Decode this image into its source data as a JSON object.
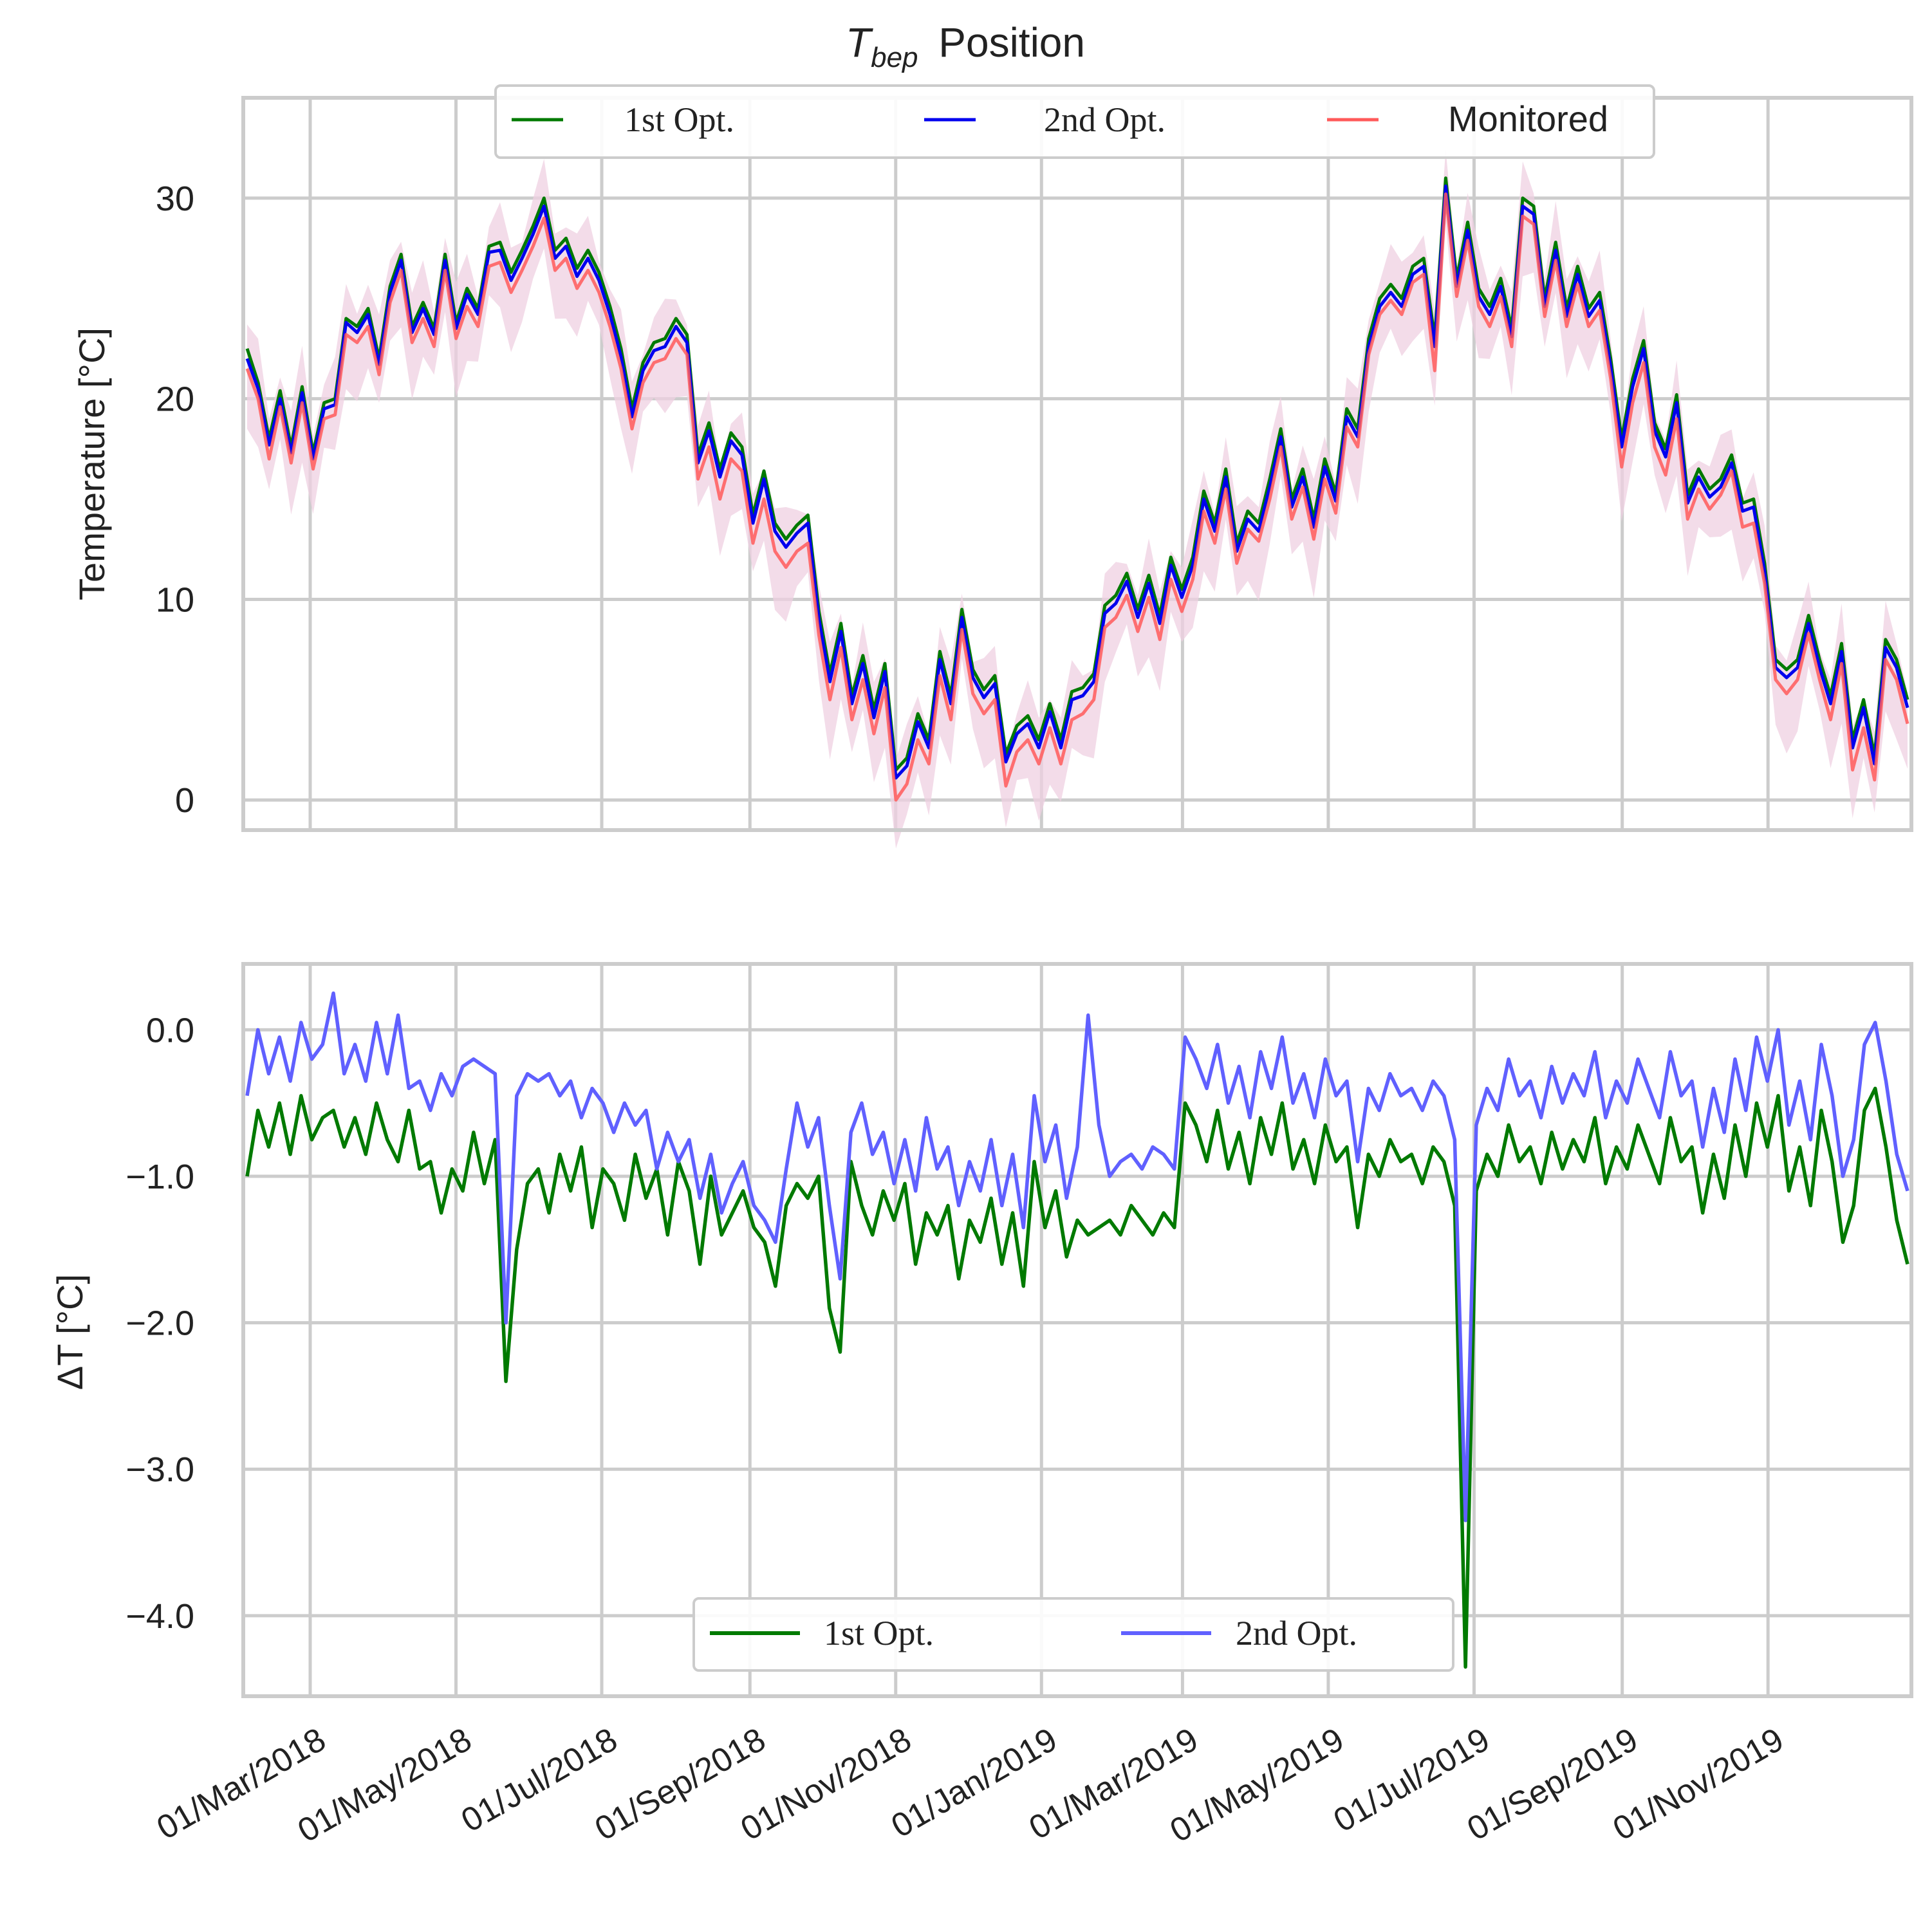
{
  "chart_data": [
    {
      "type": "line",
      "title_main": "T",
      "title_sub": "bep",
      "title_rest": " Position",
      "ylabel": "Temperature [°C]",
      "xlabel": "",
      "ylim": [
        -1.5,
        35
      ],
      "yticks": [
        0,
        10,
        20,
        30
      ],
      "yticklabels": [
        "0",
        "10",
        "20",
        "30"
      ],
      "grid": true,
      "legend_position": "top-center",
      "colors": {
        "opt1": "#007a00",
        "opt2": "#0000ee",
        "monitored": "#ff5a5a",
        "band": "#efd0e2"
      },
      "series": [
        {
          "name": "1st Opt.",
          "values": [
            22.5,
            20.8,
            18,
            20.4,
            17.6,
            20.6,
            17.3,
            19.8,
            20,
            24,
            23.6,
            24.5,
            22,
            25.6,
            27.2,
            23.6,
            24.8,
            23.5,
            27.2,
            23.8,
            25.5,
            24.5,
            27.6,
            27.8,
            26.3,
            27.4,
            28.6,
            30,
            27.4,
            28,
            26.5,
            27.4,
            26.3,
            24.6,
            22.5,
            19.5,
            21.8,
            22.8,
            23,
            24,
            23.2,
            17.2,
            18.8,
            16.5,
            18.3,
            17.6,
            14.2,
            16.4,
            13.8,
            13,
            13.7,
            14.2,
            9.4,
            6.3,
            8.8,
            5.2,
            7.2,
            4.5,
            6.8,
            1.5,
            2.1,
            4.3,
            3,
            7.4,
            5.2,
            9.5,
            6.5,
            5.5,
            6.2,
            2.3,
            3.7,
            4.2,
            3,
            4.8,
            3,
            5.4,
            5.6,
            6.3,
            9.7,
            10.2,
            11.3,
            9.5,
            11.2,
            9.2,
            12.1,
            10.5,
            12.1,
            15.4,
            13.8,
            16.5,
            12.8,
            14.4,
            13.8,
            16,
            18.5,
            15,
            16.5,
            14,
            17,
            15.3,
            19.5,
            18.5,
            23,
            25,
            25.7,
            25,
            26.6,
            27,
            23,
            31,
            26,
            28.8,
            25.5,
            24.6,
            26,
            23.5,
            30,
            29.6,
            25,
            27.8,
            24.5,
            26.6,
            24.5,
            25.3,
            22,
            18,
            21,
            22.9,
            18.8,
            17.5,
            20.2,
            15.2,
            16.5,
            15.5,
            16,
            17.2,
            14.8,
            15,
            11.8,
            7,
            6.5,
            7,
            9.2,
            7,
            5.2,
            7.8,
            3,
            5,
            2.2,
            8,
            7,
            5
          ]
        },
        {
          "name": "2nd Opt.",
          "values": [
            22,
            20.5,
            17.7,
            20,
            17.3,
            20.3,
            17,
            19.5,
            19.7,
            23.8,
            23.3,
            24.2,
            21.7,
            25.3,
            26.9,
            23.3,
            24.5,
            23.2,
            26.9,
            23.5,
            25.2,
            24.2,
            27.3,
            27.4,
            25.9,
            27,
            28.2,
            29.6,
            27,
            27.6,
            26.1,
            27,
            25.9,
            24.2,
            22.1,
            19.1,
            21.4,
            22.4,
            22.6,
            23.6,
            22.8,
            16.8,
            18.4,
            16.1,
            17.9,
            17.2,
            13.8,
            16,
            13.4,
            12.6,
            13.3,
            13.8,
            9,
            5.9,
            8.4,
            4.8,
            6.8,
            4.1,
            6.4,
            1.1,
            1.7,
            3.9,
            2.6,
            7,
            4.8,
            9.1,
            6.1,
            5.1,
            5.8,
            1.9,
            3.3,
            3.8,
            2.6,
            4.4,
            2.6,
            5,
            5.2,
            5.9,
            9.3,
            9.8,
            10.9,
            9.1,
            10.8,
            8.8,
            11.7,
            10.1,
            11.7,
            15,
            13.4,
            16.1,
            12.4,
            14,
            13.4,
            15.6,
            18.1,
            14.6,
            16.1,
            13.6,
            16.6,
            14.9,
            19.1,
            18.1,
            22.6,
            24.6,
            25.3,
            24.6,
            26.2,
            26.6,
            22.6,
            30.6,
            25.6,
            28.4,
            25.1,
            24.2,
            25.6,
            23.1,
            29.6,
            29.2,
            24.6,
            27.4,
            24.1,
            26.2,
            24.1,
            24.9,
            21.6,
            17.6,
            20.6,
            22.5,
            18.4,
            17.1,
            19.8,
            14.8,
            16.1,
            15.1,
            15.6,
            16.8,
            14.4,
            14.6,
            11.4,
            6.6,
            6.1,
            6.6,
            8.8,
            6.6,
            4.8,
            7.4,
            2.6,
            4.6,
            1.8,
            7.6,
            6.6,
            4.6
          ]
        },
        {
          "name": "Monitored",
          "values": [
            21.5,
            20,
            17,
            19.6,
            16.8,
            19.8,
            16.5,
            19,
            19.2,
            23.2,
            22.8,
            23.6,
            21.2,
            24.8,
            26.4,
            22.8,
            24,
            22.6,
            26.4,
            23,
            24.6,
            23.6,
            26.6,
            26.8,
            25.3,
            26.4,
            27.6,
            29,
            26.4,
            27,
            25.5,
            26.4,
            25.3,
            23.6,
            21.5,
            18.5,
            20.8,
            21.8,
            22,
            23,
            22.2,
            16,
            17.6,
            15,
            17,
            16.4,
            12.8,
            15,
            12.4,
            11.6,
            12.4,
            12.8,
            8.2,
            5,
            7.6,
            4,
            6,
            3.3,
            5.6,
            0,
            0.8,
            3,
            1.8,
            6.2,
            4,
            8.5,
            5.3,
            4.3,
            5,
            0.7,
            2.4,
            3,
            1.8,
            3.6,
            1.8,
            4,
            4.3,
            5,
            8.6,
            9.1,
            10.2,
            8.4,
            10.1,
            8,
            11,
            9.4,
            11,
            14.4,
            12.8,
            15.5,
            11.8,
            13.5,
            12.9,
            15,
            17.6,
            14,
            15.6,
            13,
            16,
            14.3,
            18.6,
            17.6,
            22.2,
            24.2,
            24.9,
            24.2,
            25.8,
            26.2,
            21.4,
            30.2,
            25.1,
            27.9,
            24.6,
            23.6,
            25.1,
            22.6,
            29.1,
            28.7,
            24.1,
            26.9,
            23.6,
            25.7,
            23.6,
            24.4,
            21,
            16.6,
            19.8,
            21.8,
            17.6,
            16.2,
            19,
            14,
            15.5,
            14.5,
            15.2,
            16.4,
            13.6,
            13.8,
            10.8,
            6,
            5.3,
            6,
            8.3,
            6,
            4,
            6.8,
            1.5,
            3.6,
            1,
            7,
            6,
            3.8
          ]
        }
      ],
      "band": {
        "name": "Monitored range",
        "halfwidth": 2.2
      }
    },
    {
      "type": "line",
      "title": "",
      "ylabel": "ΔT [°C]",
      "xlabel": "",
      "ylim": [
        -4.55,
        0.45
      ],
      "yticks": [
        0,
        -1,
        -2,
        -3,
        -4
      ],
      "yticklabels": [
        "0.0",
        "−1.0",
        "−2.0",
        "−3.0",
        "−4.0"
      ],
      "grid": true,
      "legend_position": "bottom-center",
      "colors": {
        "opt1": "#007a00",
        "opt2": "#6060ff"
      },
      "series": [
        {
          "name": "1st Opt.",
          "values": [
            -1,
            -0.55,
            -0.8,
            -0.5,
            -0.85,
            -0.45,
            -0.75,
            -0.6,
            -0.55,
            -0.8,
            -0.6,
            -0.85,
            -0.5,
            -0.75,
            -0.9,
            -0.55,
            -0.95,
            -0.9,
            -1.25,
            -0.95,
            -1.1,
            -0.7,
            -1.05,
            -0.75,
            -2.4,
            -1.5,
            -1.05,
            -0.95,
            -1.25,
            -0.85,
            -1.1,
            -0.8,
            -1.35,
            -0.95,
            -1.05,
            -1.3,
            -0.85,
            -1.15,
            -0.95,
            -1.4,
            -0.9,
            -1.1,
            -1.6,
            -1,
            -1.4,
            -1.25,
            -1.1,
            -1.35,
            -1.45,
            -1.75,
            -1.2,
            -1.05,
            -1.15,
            -1,
            -1.9,
            -2.2,
            -0.9,
            -1.2,
            -1.4,
            -1.1,
            -1.3,
            -1.05,
            -1.6,
            -1.25,
            -1.4,
            -1.2,
            -1.7,
            -1.3,
            -1.45,
            -1.15,
            -1.6,
            -1.25,
            -1.75,
            -0.9,
            -1.35,
            -1.1,
            -1.55,
            -1.3,
            -1.4,
            -1.35,
            -1.3,
            -1.4,
            -1.2,
            -1.3,
            -1.4,
            -1.25,
            -1.35,
            -0.5,
            -0.65,
            -0.9,
            -0.55,
            -0.95,
            -0.7,
            -1.05,
            -0.6,
            -0.85,
            -0.5,
            -0.95,
            -0.75,
            -1.05,
            -0.65,
            -0.9,
            -0.8,
            -1.35,
            -0.85,
            -1,
            -0.75,
            -0.9,
            -0.85,
            -1.05,
            -0.8,
            -0.9,
            -1.2,
            -4.35,
            -1.1,
            -0.85,
            -1,
            -0.65,
            -0.9,
            -0.8,
            -1.05,
            -0.7,
            -0.95,
            -0.75,
            -0.9,
            -0.6,
            -1.05,
            -0.8,
            -0.95,
            -0.65,
            -0.85,
            -1.05,
            -0.6,
            -0.9,
            -0.8,
            -1.25,
            -0.85,
            -1.15,
            -0.65,
            -1,
            -0.5,
            -0.8,
            -0.45,
            -1.1,
            -0.8,
            -1.2,
            -0.55,
            -0.9,
            -1.45,
            -1.2,
            -0.55,
            -0.4,
            -0.8,
            -1.3,
            -1.6
          ]
        },
        {
          "name": "2nd Opt.",
          "values": [
            -0.45,
            0,
            -0.3,
            -0.05,
            -0.35,
            0.05,
            -0.2,
            -0.1,
            0.25,
            -0.3,
            -0.1,
            -0.35,
            0.05,
            -0.3,
            0.1,
            -0.4,
            -0.35,
            -0.55,
            -0.3,
            -0.45,
            -0.25,
            -0.2,
            -0.25,
            -0.3,
            -2,
            -0.45,
            -0.3,
            -0.35,
            -0.3,
            -0.45,
            -0.35,
            -0.6,
            -0.4,
            -0.5,
            -0.7,
            -0.5,
            -0.65,
            -0.55,
            -0.95,
            -0.7,
            -0.9,
            -0.75,
            -1.15,
            -0.85,
            -1.25,
            -1.05,
            -0.9,
            -1.2,
            -1.3,
            -1.45,
            -0.95,
            -0.5,
            -0.8,
            -0.6,
            -1.2,
            -1.7,
            -0.7,
            -0.5,
            -0.85,
            -0.7,
            -1.05,
            -0.75,
            -1.1,
            -0.6,
            -0.95,
            -0.8,
            -1.2,
            -0.9,
            -1.1,
            -0.75,
            -1.2,
            -0.85,
            -1.35,
            -0.45,
            -0.9,
            -0.65,
            -1.15,
            -0.8,
            0.1,
            -0.65,
            -1,
            -0.9,
            -0.85,
            -0.95,
            -0.8,
            -0.85,
            -0.95,
            -0.05,
            -0.2,
            -0.4,
            -0.1,
            -0.5,
            -0.25,
            -0.6,
            -0.15,
            -0.4,
            -0.05,
            -0.5,
            -0.3,
            -0.6,
            -0.2,
            -0.45,
            -0.35,
            -0.9,
            -0.4,
            -0.55,
            -0.3,
            -0.45,
            -0.4,
            -0.55,
            -0.35,
            -0.45,
            -0.75,
            -3.35,
            -0.65,
            -0.4,
            -0.55,
            -0.2,
            -0.45,
            -0.35,
            -0.6,
            -0.25,
            -0.5,
            -0.3,
            -0.45,
            -0.15,
            -0.6,
            -0.35,
            -0.5,
            -0.2,
            -0.4,
            -0.6,
            -0.15,
            -0.45,
            -0.35,
            -0.8,
            -0.4,
            -0.7,
            -0.2,
            -0.55,
            -0.05,
            -0.35,
            0,
            -0.65,
            -0.35,
            -0.75,
            -0.1,
            -0.45,
            -1,
            -0.75,
            -0.1,
            0.05,
            -0.35,
            -0.85,
            -1.1
          ]
        }
      ]
    }
  ],
  "x_axis": {
    "start": "01/Feb/2018",
    "end": "31/Dec/2019",
    "ticks": [
      "01/Mar/2018",
      "01/May/2018",
      "01/Jul/2018",
      "01/Sep/2018",
      "01/Nov/2018",
      "01/Jan/2019",
      "01/Mar/2019",
      "01/May/2019",
      "01/Jul/2019",
      "01/Sep/2019",
      "01/Nov/2019"
    ]
  }
}
